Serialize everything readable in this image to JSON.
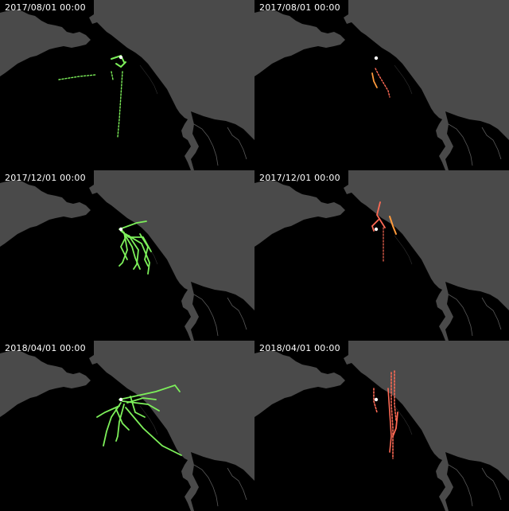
{
  "panels": [
    {
      "id": "p1",
      "timestamp": "2017/08/01 00:00",
      "track_color": "#7df05a"
    },
    {
      "id": "p2",
      "timestamp": "2017/08/01 00:00",
      "track_color": "#ff6a55"
    },
    {
      "id": "p3",
      "timestamp": "2017/12/01 00:00",
      "track_color": "#7df05a"
    },
    {
      "id": "p4",
      "timestamp": "2017/12/01 00:00",
      "track_color": "#ff6a55"
    },
    {
      "id": "p5",
      "timestamp": "2018/04/01 00:00",
      "track_color": "#7df05a"
    },
    {
      "id": "p6",
      "timestamp": "2018/04/01 00:00",
      "track_color": "#ff6a55"
    }
  ],
  "colors": {
    "land": "#000000",
    "ocean": "#4a4a4a",
    "green_tracks": "#7df05a",
    "red_tracks": "#ff6a55",
    "orange_tracks": "#ff9a3c",
    "marker": "#ffffff"
  }
}
